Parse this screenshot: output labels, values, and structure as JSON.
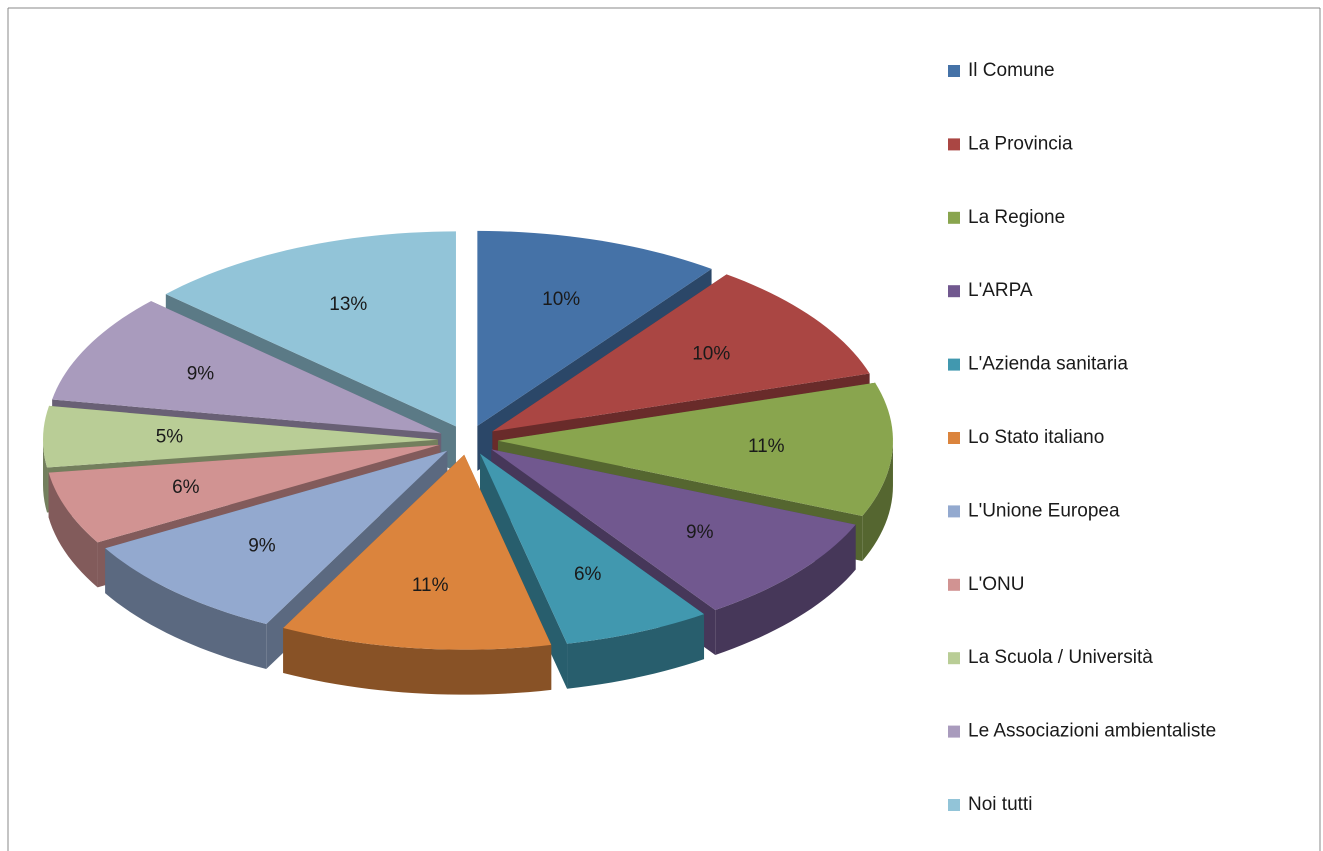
{
  "chart_data": {
    "type": "pie",
    "categories": [
      "Il Comune",
      "La Provincia",
      "La Regione",
      "L'ARPA",
      "L'Azienda sanitaria",
      "Lo Stato italiano",
      "L'Unione Europea",
      "L'ONU",
      "La Scuola / Università",
      "Le Associazioni ambientaliste",
      "Noi tutti"
    ],
    "values": [
      10,
      10,
      11,
      9,
      6,
      11,
      9,
      6,
      5,
      9,
      13
    ],
    "value_labels": [
      "10%",
      "10%",
      "11%",
      "9%",
      "6%",
      "11%",
      "9%",
      "6%",
      "5%",
      "9%",
      "13%"
    ],
    "colors": [
      "#4572a7",
      "#aa4643",
      "#89a54e",
      "#71588f",
      "#4198af",
      "#db843d",
      "#93a9cf",
      "#d19392",
      "#b9cd96",
      "#a99bbd",
      "#92c4d8"
    ],
    "legend": "right"
  }
}
